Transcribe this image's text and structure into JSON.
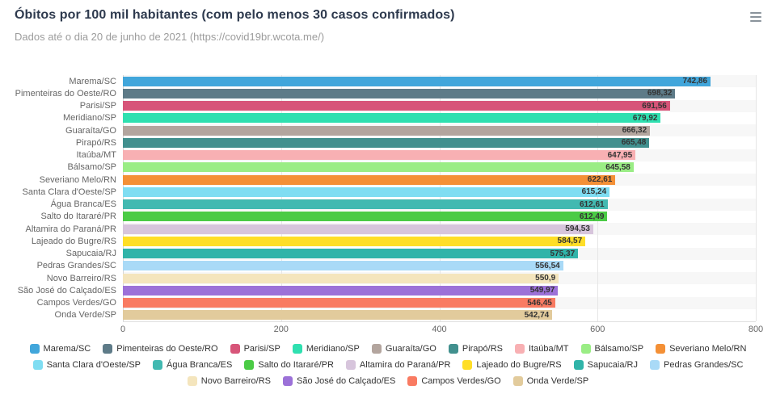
{
  "header": {
    "title": "Óbitos por 100 mil habitantes (com pelo menos 30 casos confirmados)",
    "subtitle": "Dados até o dia 20 de junho de 2021 (https://covid19br.wcota.me/)",
    "menu_icon": "hamburger-icon"
  },
  "chart_data": {
    "type": "bar",
    "orientation": "horizontal",
    "title": "Óbitos por 100 mil habitantes (com pelo menos 30 casos confirmados)",
    "subtitle": "Dados até o dia 20 de junho de 2021 (https://covid19br.wcota.me/)",
    "categories": [
      "Marema/SC",
      "Pimenteiras do Oeste/RO",
      "Parisi/SP",
      "Meridiano/SP",
      "Guaraíta/GO",
      "Pirapó/RS",
      "Itaúba/MT",
      "Bálsamo/SP",
      "Severiano Melo/RN",
      "Santa Clara d'Oeste/SP",
      "Água Branca/ES",
      "Salto do Itararé/PR",
      "Altamira do Paraná/PR",
      "Lajeado do Bugre/RS",
      "Sapucaia/RJ",
      "Pedras Grandes/SC",
      "Novo Barreiro/RS",
      "São José do Calçado/ES",
      "Campos Verdes/GO",
      "Onda Verde/SP"
    ],
    "values": [
      742.86,
      698.32,
      691.56,
      679.92,
      666.32,
      665.48,
      647.95,
      645.58,
      622.61,
      615.24,
      612.61,
      612.49,
      594.53,
      584.57,
      575.37,
      556.54,
      550.9,
      549.97,
      546.45,
      542.74
    ],
    "value_labels": [
      "742,86",
      "698,32",
      "691,56",
      "679,92",
      "666,32",
      "665,48",
      "647,95",
      "645,58",
      "622,61",
      "615,24",
      "612,61",
      "612,49",
      "594,53",
      "584,57",
      "575,37",
      "556,54",
      "550,9",
      "549,97",
      "546,45",
      "542,74"
    ],
    "colors": [
      "#41a6db",
      "#5e7b88",
      "#d75579",
      "#2fe0b0",
      "#b3a59e",
      "#41908e",
      "#f8b0b3",
      "#9aed85",
      "#f49036",
      "#7fddf2",
      "#42b9b1",
      "#4bcb45",
      "#d7c5dc",
      "#ffde27",
      "#30b4a9",
      "#a9daf7",
      "#f4e5bd",
      "#9c71d8",
      "#f97b62",
      "#e2cb9c"
    ],
    "legend": [
      "Marema/SC",
      "Pimenteiras do Oeste/RO",
      "Parisi/SP",
      "Meridiano/SP",
      "Guaraíta/GO",
      "Pirapó/RS",
      "Itaúba/MT",
      "Bálsamo/SP",
      "Severiano Melo/RN",
      "Santa Clara d'Oeste/SP",
      "Água Branca/ES",
      "Salto do Itararé/PR",
      "Altamira do Paraná/PR",
      "Lajeado do Bugre/RS",
      "Sapucaia/RJ",
      "Pedras Grandes/SC",
      "Novo Barreiro/RS",
      "São José do Calçado/ES",
      "Campos Verdes/GO",
      "Onda Verde/SP"
    ],
    "xlabel": "",
    "ylabel": "",
    "xlim": [
      0,
      800
    ],
    "x_ticks": [
      0,
      200,
      400,
      600,
      800
    ],
    "grid": "vertical gridlines, alternating horizontal row bands",
    "band_color": "#f7f7f7",
    "legend_position": "bottom"
  }
}
